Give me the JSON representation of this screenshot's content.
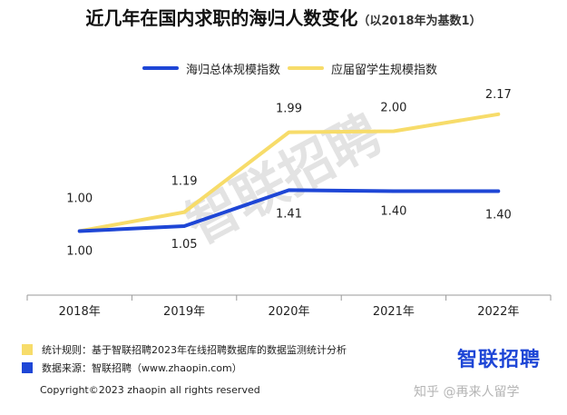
{
  "title": {
    "main": "近几年在国内求职的海归人数变化",
    "sub": "（以2018年为基数1）"
  },
  "colors": {
    "returnee_series": "#1e46d6",
    "graduate_series": "#f7dc6a",
    "axis": "#9a9a9a",
    "watermark": "#e3e3e3",
    "brand": "#1e46d6"
  },
  "chart_data": {
    "type": "line",
    "x": [
      "2018年",
      "2019年",
      "2020年",
      "2021年",
      "2022年"
    ],
    "series": [
      {
        "name": "海归总体规模指数",
        "values": [
          1.0,
          1.05,
          1.41,
          1.4,
          1.4
        ],
        "color": "#1e46d6"
      },
      {
        "name": "应届留学生规模指数",
        "values": [
          1.0,
          1.19,
          1.99,
          2.0,
          2.17
        ],
        "color": "#f7dc6a"
      }
    ],
    "ylim": [
      0.45,
      2.45
    ],
    "grid": false,
    "legend_position": "top-center"
  },
  "watermark": "智联招聘",
  "footnotes": [
    {
      "label": "统计规则：基于智联招聘2023年在线招聘数据库的数据监测统计分析",
      "color": "#f7dc6a"
    },
    {
      "label": "数据来源：智联招聘（www.zhaopin.com）",
      "color": "#1e46d6"
    }
  ],
  "brand_logo": "智联招聘",
  "copyright": "Copyright©2023 zhaopin all rights reserved",
  "source_mark": "知乎 @再来人留学"
}
